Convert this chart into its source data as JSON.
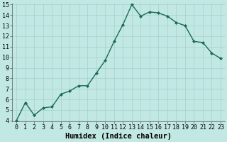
{
  "x": [
    0,
    1,
    2,
    3,
    4,
    5,
    6,
    7,
    8,
    9,
    10,
    11,
    12,
    13,
    14,
    15,
    16,
    17,
    18,
    19,
    20,
    21,
    22,
    23
  ],
  "y": [
    4.0,
    5.7,
    4.5,
    5.2,
    5.3,
    6.5,
    6.8,
    7.3,
    7.3,
    8.5,
    9.7,
    11.5,
    13.1,
    15.0,
    13.9,
    14.3,
    14.2,
    13.9,
    13.3,
    13.0,
    11.5,
    11.4,
    10.4,
    9.9
  ],
  "ylim_min": 4,
  "ylim_max": 15,
  "xlim_min": -0.5,
  "xlim_max": 23.5,
  "yticks": [
    4,
    5,
    6,
    7,
    8,
    9,
    10,
    11,
    12,
    13,
    14,
    15
  ],
  "xticks": [
    0,
    1,
    2,
    3,
    4,
    5,
    6,
    7,
    8,
    9,
    10,
    11,
    12,
    13,
    14,
    15,
    16,
    17,
    18,
    19,
    20,
    21,
    22,
    23
  ],
  "xlabel": "Humidex (Indice chaleur)",
  "line_color": "#1a6b52",
  "marker": "D",
  "marker_size": 2.0,
  "bg_color": "#c2e8e4",
  "grid_color": "#aad4cf",
  "xlabel_fontsize": 7.5,
  "tick_fontsize": 6.0,
  "linewidth": 1.0
}
